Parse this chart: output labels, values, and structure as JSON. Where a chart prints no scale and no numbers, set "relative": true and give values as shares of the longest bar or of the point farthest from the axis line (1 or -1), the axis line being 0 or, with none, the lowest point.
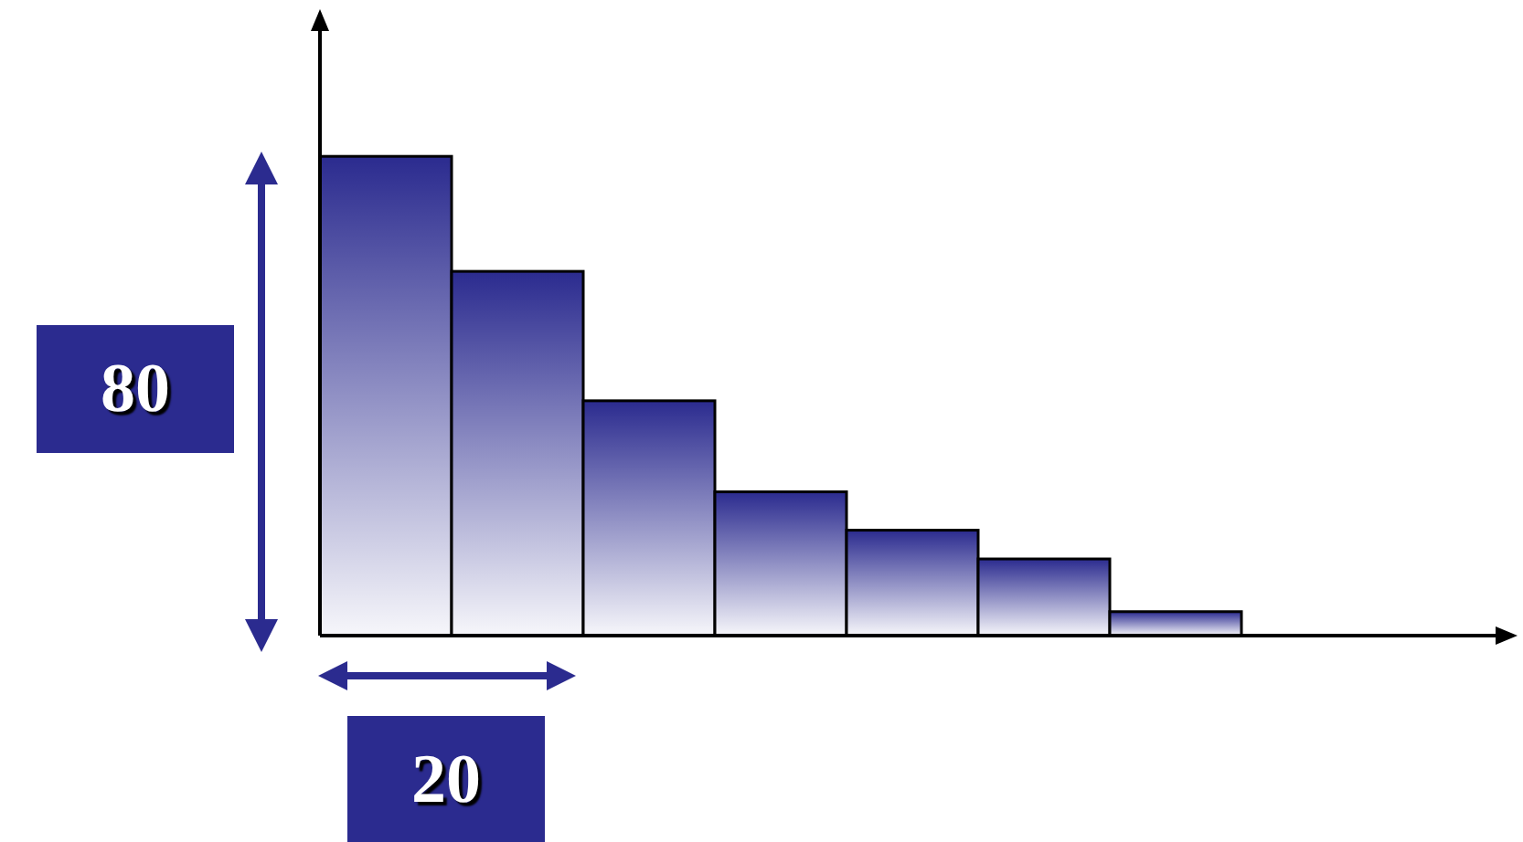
{
  "chart_data": {
    "type": "bar",
    "relative": true,
    "categories": [
      null,
      null,
      null,
      null,
      null,
      null,
      null
    ],
    "values": [
      1,
      0.76,
      0.49,
      0.3,
      0.22,
      0.16,
      0.05
    ],
    "color": "#2b2b8f",
    "annotations": [
      "80",
      "20"
    ]
  }
}
